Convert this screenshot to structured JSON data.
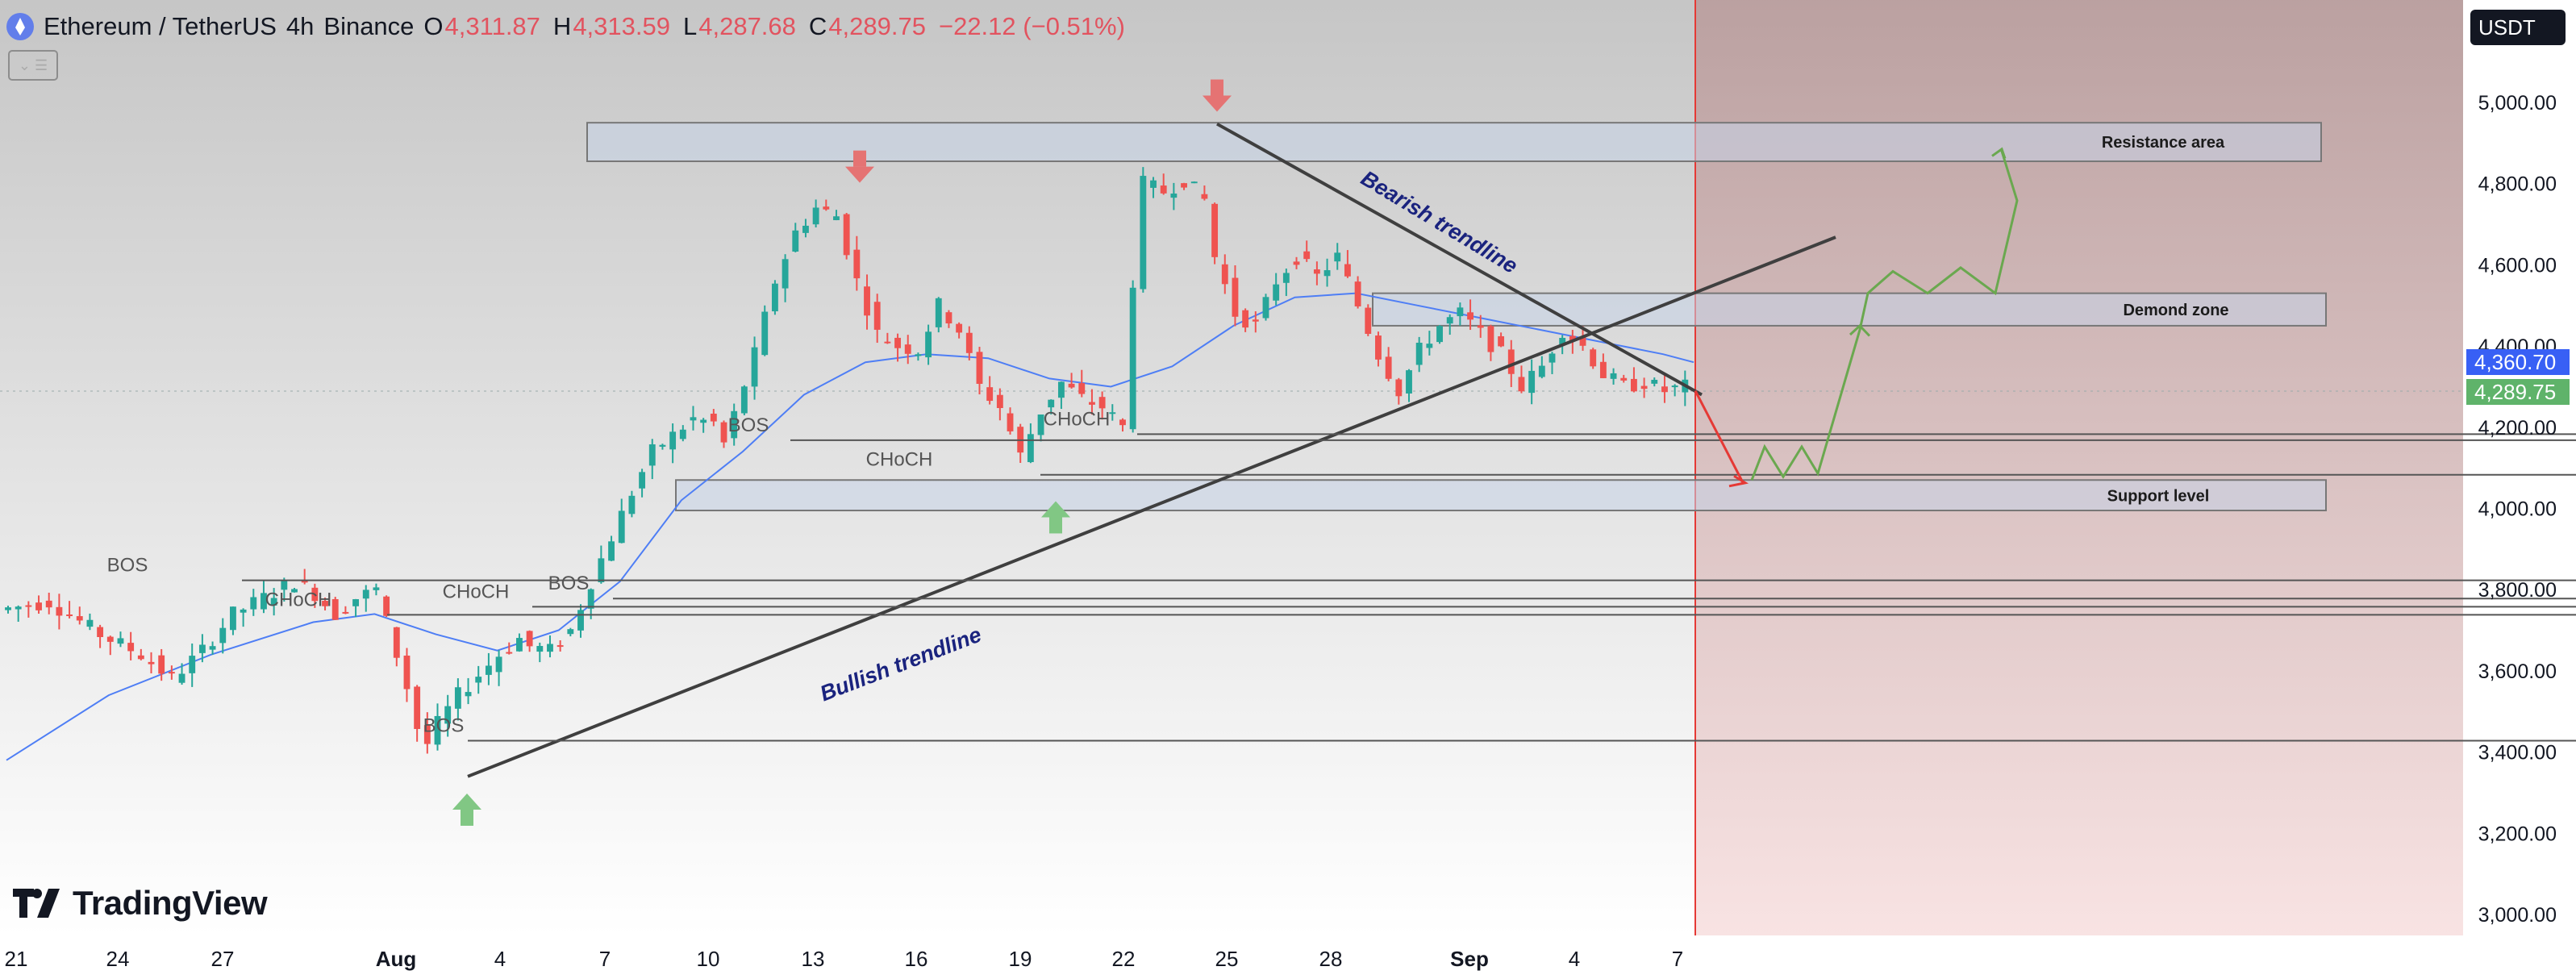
{
  "header": {
    "pair": "Ethereum / TetherUS",
    "interval": "4h",
    "exchange": "Binance",
    "open_key": "O",
    "open": "4,311.87",
    "high_key": "H",
    "high": "4,313.59",
    "low_key": "L",
    "low": "4,287.68",
    "close_key": "C",
    "close": "4,289.75",
    "change": "−22.12 (−0.51%)"
  },
  "currency": "USDT",
  "current_price": "4,289.75",
  "ma_price": "4,360.70",
  "logo_text": "TradingView",
  "colors": {
    "up": "#26a69a",
    "down": "#ef5350",
    "ma": "#4e7ef5",
    "zone": "#c7d3e8",
    "forecast_bg": "#e58a8a",
    "current_price_badge": "#5fb36a",
    "ma_badge": "#3860f5",
    "bull_path": "#6aa84f",
    "bear_path": "#e53935"
  },
  "chart_data": {
    "type": "candlestick",
    "symbol": "ETH/USDT",
    "timeframe": "4h",
    "y_axis": {
      "ticks": [
        "5,000.00",
        "4,800.00",
        "4,600.00",
        "4,400.00",
        "4,200.00",
        "4,000.00",
        "3,800.00",
        "3,600.00",
        "3,400.00",
        "3,200.00",
        "3,000.00"
      ],
      "range": [
        2980,
        5100
      ]
    },
    "x_axis": {
      "ticks": [
        "21",
        "24",
        "27",
        "Aug",
        "4",
        "7",
        "10",
        "13",
        "16",
        "19",
        "22",
        "25",
        "28",
        "Sep",
        "4",
        "7"
      ]
    },
    "annotations": {
      "resistance": "Resistance area",
      "demand": "Demond zone",
      "support": "Support level",
      "bearish_trend": "Bearish trendline",
      "bullish_trend": "Bullish trendline",
      "structure_labels": [
        "BOS",
        "CHoCH",
        "CHoCH",
        "BOS",
        "BOS",
        "BOS",
        "CHoCH",
        "CHoCH"
      ]
    },
    "zones": [
      {
        "name": "Resistance area",
        "low": 4855,
        "high": 4950
      },
      {
        "name": "Demond zone",
        "low": 4450,
        "high": 4530
      },
      {
        "name": "Support level",
        "low": 3995,
        "high": 4070
      }
    ],
    "price_path": [
      [
        0,
        3750
      ],
      [
        5,
        3770
      ],
      [
        10,
        3690
      ],
      [
        14,
        3640
      ],
      [
        17,
        3580
      ],
      [
        20,
        3650
      ],
      [
        23,
        3740
      ],
      [
        26,
        3780
      ],
      [
        29,
        3820
      ],
      [
        31,
        3790
      ],
      [
        33,
        3740
      ],
      [
        35,
        3780
      ],
      [
        37,
        3800
      ],
      [
        38,
        3720
      ],
      [
        39,
        3640
      ],
      [
        40,
        3560
      ],
      [
        41,
        3460
      ],
      [
        42,
        3420
      ],
      [
        43,
        3470
      ],
      [
        45,
        3540
      ],
      [
        47,
        3590
      ],
      [
        49,
        3640
      ],
      [
        51,
        3680
      ],
      [
        52,
        3660
      ],
      [
        54,
        3650
      ],
      [
        56,
        3700
      ],
      [
        58,
        3820
      ],
      [
        60,
        3930
      ],
      [
        62,
        4040
      ],
      [
        64,
        4140
      ],
      [
        66,
        4180
      ],
      [
        68,
        4220
      ],
      [
        70,
        4210
      ],
      [
        71,
        4160
      ],
      [
        72,
        4230
      ],
      [
        74,
        4380
      ],
      [
        76,
        4560
      ],
      [
        78,
        4680
      ],
      [
        80,
        4740
      ],
      [
        82,
        4720
      ],
      [
        84,
        4560
      ],
      [
        86,
        4430
      ],
      [
        88,
        4400
      ],
      [
        90,
        4390
      ],
      [
        92,
        4500
      ],
      [
        94,
        4440
      ],
      [
        96,
        4300
      ],
      [
        98,
        4250
      ],
      [
        100,
        4130
      ],
      [
        102,
        4240
      ],
      [
        104,
        4310
      ],
      [
        106,
        4270
      ],
      [
        108,
        4250
      ],
      [
        110,
        4200
      ],
      [
        111,
        4560
      ],
      [
        112,
        4800
      ],
      [
        114,
        4780
      ],
      [
        116,
        4810
      ],
      [
        118,
        4760
      ],
      [
        119,
        4620
      ],
      [
        121,
        4480
      ],
      [
        123,
        4450
      ],
      [
        125,
        4560
      ],
      [
        127,
        4620
      ],
      [
        129,
        4570
      ],
      [
        131,
        4620
      ],
      [
        133,
        4500
      ],
      [
        135,
        4380
      ],
      [
        137,
        4290
      ],
      [
        139,
        4390
      ],
      [
        141,
        4450
      ],
      [
        143,
        4480
      ],
      [
        145,
        4430
      ],
      [
        147,
        4380
      ],
      [
        149,
        4300
      ],
      [
        151,
        4350
      ],
      [
        153,
        4440
      ],
      [
        155,
        4400
      ],
      [
        157,
        4330
      ],
      [
        159,
        4300
      ],
      [
        161,
        4310
      ],
      [
        163,
        4290
      ],
      [
        165,
        4300
      ]
    ],
    "ma_path": [
      [
        0,
        3380
      ],
      [
        10,
        3540
      ],
      [
        20,
        3640
      ],
      [
        30,
        3720
      ],
      [
        36,
        3740
      ],
      [
        42,
        3690
      ],
      [
        48,
        3650
      ],
      [
        54,
        3700
      ],
      [
        60,
        3820
      ],
      [
        66,
        4020
      ],
      [
        72,
        4140
      ],
      [
        78,
        4280
      ],
      [
        84,
        4360
      ],
      [
        90,
        4380
      ],
      [
        96,
        4370
      ],
      [
        102,
        4320
      ],
      [
        108,
        4300
      ],
      [
        114,
        4350
      ],
      [
        120,
        4450
      ],
      [
        126,
        4520
      ],
      [
        132,
        4530
      ],
      [
        138,
        4500
      ],
      [
        144,
        4470
      ],
      [
        150,
        4440
      ],
      [
        156,
        4410
      ],
      [
        162,
        4380
      ],
      [
        165,
        4360
      ]
    ]
  }
}
